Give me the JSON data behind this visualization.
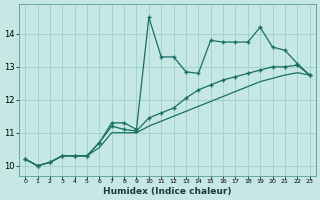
{
  "xlabel": "Humidex (Indice chaleur)",
  "bg_color": "#c5e8e5",
  "grid_color": "#9ecece",
  "line_color": "#1a6e65",
  "xlim": [
    -0.5,
    23.5
  ],
  "ylim": [
    9.7,
    14.9
  ],
  "xticks": [
    0,
    1,
    2,
    3,
    4,
    5,
    6,
    7,
    8,
    9,
    10,
    11,
    12,
    13,
    14,
    15,
    16,
    17,
    18,
    19,
    20,
    21,
    22,
    23
  ],
  "yticks": [
    10,
    11,
    12,
    13,
    14
  ],
  "lines": [
    {
      "x": [
        0,
        1,
        2,
        3,
        4,
        5,
        6,
        7,
        8,
        9,
        10,
        11,
        12,
        13,
        14,
        15,
        16,
        17,
        18,
        19,
        20,
        21,
        22,
        23
      ],
      "y": [
        10.2,
        10.0,
        10.1,
        10.3,
        10.3,
        10.3,
        10.7,
        11.3,
        11.3,
        11.1,
        14.5,
        13.3,
        13.3,
        12.85,
        12.8,
        13.8,
        13.75,
        13.75,
        13.75,
        14.2,
        13.6,
        13.5,
        13.1,
        12.75
      ],
      "marker": "+",
      "markersize": 3.5,
      "linewidth": 0.9
    },
    {
      "x": [
        0,
        1,
        2,
        3,
        4,
        5,
        6,
        7,
        8,
        9,
        10,
        11,
        12,
        13,
        14,
        15,
        16,
        17,
        18,
        19,
        20,
        21,
        22,
        23
      ],
      "y": [
        10.2,
        10.0,
        10.1,
        10.3,
        10.3,
        10.3,
        10.7,
        11.2,
        11.1,
        11.05,
        11.45,
        11.6,
        11.75,
        12.05,
        12.3,
        12.45,
        12.6,
        12.7,
        12.8,
        12.9,
        13.0,
        13.0,
        13.05,
        12.75
      ],
      "marker": "+",
      "markersize": 3.5,
      "linewidth": 0.9
    },
    {
      "x": [
        0,
        1,
        2,
        3,
        4,
        5,
        6,
        7,
        8,
        9,
        10,
        11,
        12,
        13,
        14,
        15,
        16,
        17,
        18,
        19,
        20,
        21,
        22,
        23
      ],
      "y": [
        10.2,
        10.0,
        10.1,
        10.3,
        10.3,
        10.3,
        10.55,
        11.0,
        11.0,
        11.0,
        11.2,
        11.35,
        11.5,
        11.65,
        11.8,
        11.95,
        12.1,
        12.25,
        12.4,
        12.55,
        12.65,
        12.75,
        12.82,
        12.75
      ],
      "marker": null,
      "markersize": 0,
      "linewidth": 0.9
    }
  ]
}
